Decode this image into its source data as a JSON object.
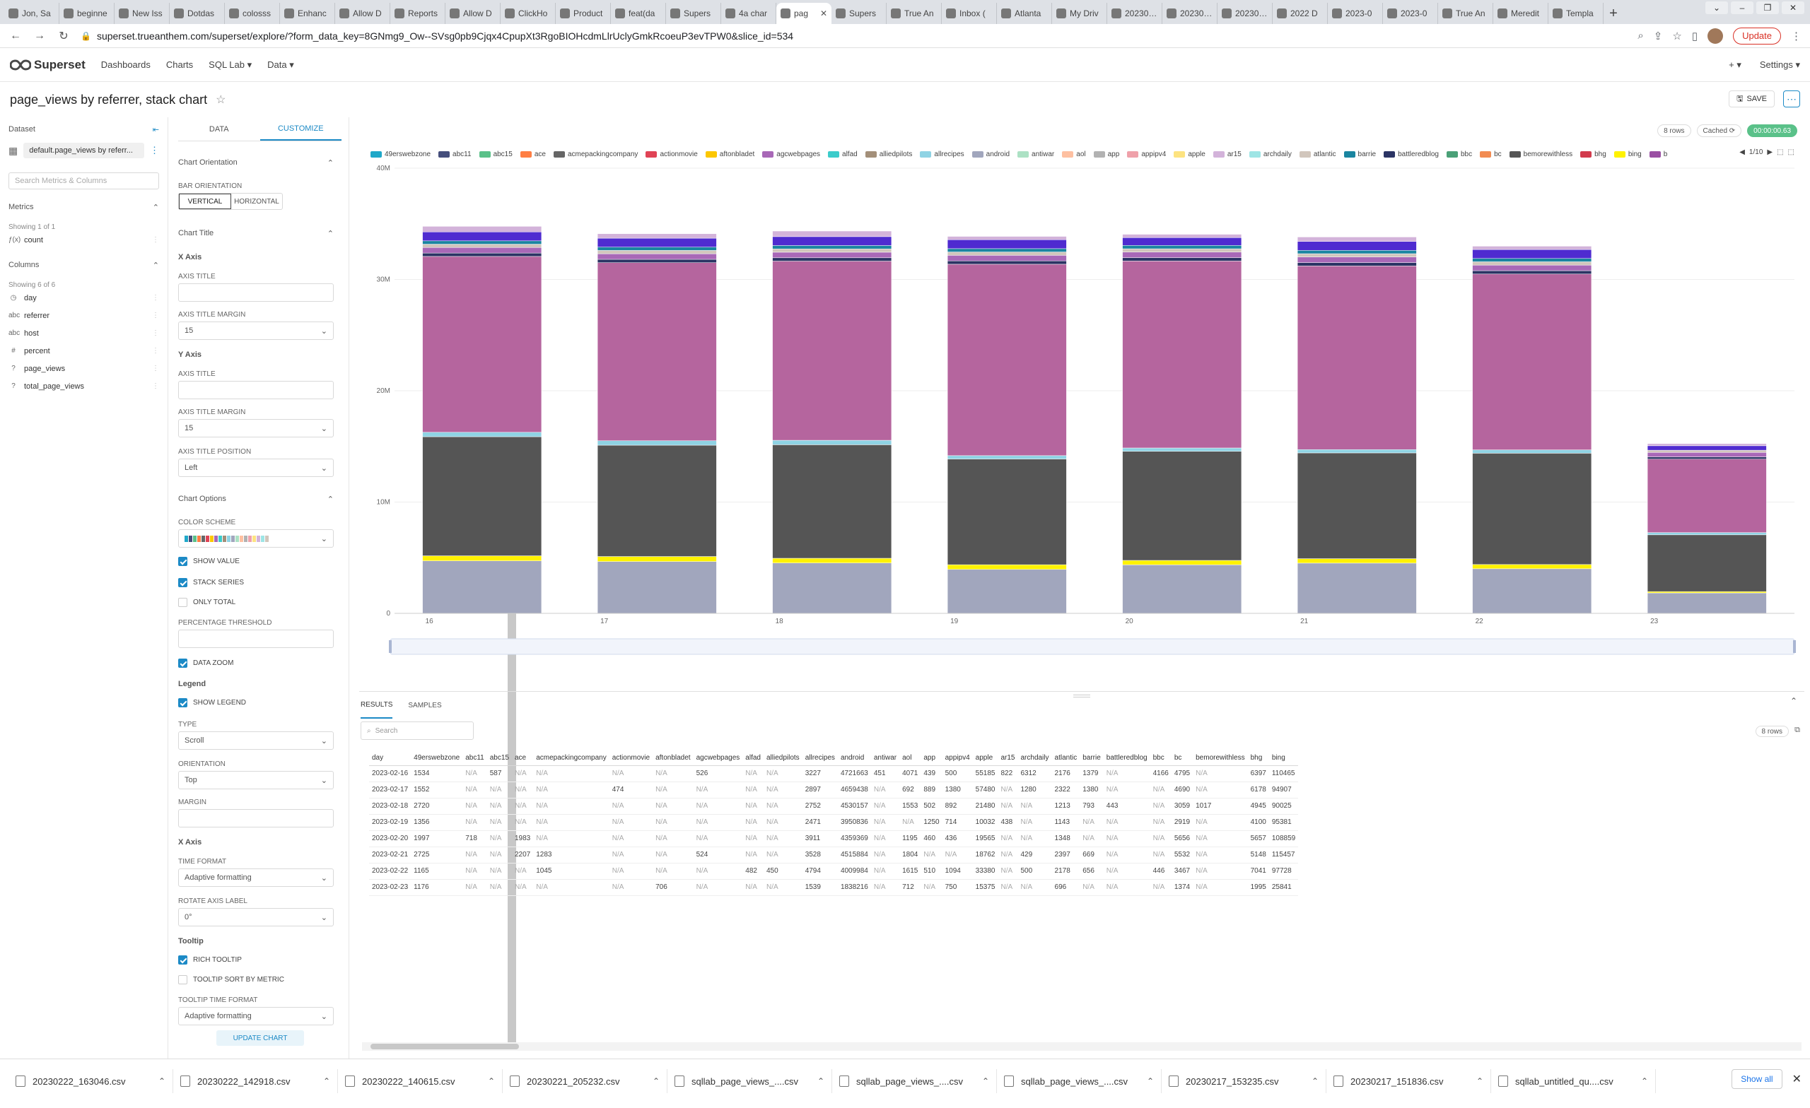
{
  "browser": {
    "tabs": [
      "Jon, Sa",
      "beginne",
      "New Iss",
      "Dotdas",
      "colosss",
      "Enhanc",
      "Allow D",
      "Reports",
      "Allow D",
      "ClickHo",
      "Product",
      "feat(da",
      "Supers",
      "4a char",
      "pag",
      "Supers",
      "True An",
      "Inbox (",
      "Atlanta",
      "My Driv",
      "20230…",
      "20230…",
      "20230…",
      "2022 D",
      "2023-0",
      "2023-0",
      "True An",
      "Meredit",
      "Templa"
    ],
    "active_tab": 14,
    "url": "superset.trueanthem.com/superset/explore/?form_data_key=8GNmg9_Ow--SVsg0pb9Cjqx4CpupXt3RgoBIOHcdmLlrUclyGmkRcoeuP3evTPW0&slice_id=534",
    "update_label": "Update"
  },
  "appnav": {
    "brand": "Superset",
    "links": [
      "Dashboards",
      "Charts",
      "SQL Lab ▾",
      "Data ▾"
    ],
    "right": [
      "+ ▾",
      "Settings ▾"
    ]
  },
  "header": {
    "title": "page_views by referrer, stack chart",
    "save_label": "SAVE"
  },
  "dataset": {
    "label": "Dataset",
    "name": "default.page_views by referr...",
    "search_placeholder": "Search Metrics & Columns",
    "metrics_label": "Metrics",
    "metrics_showing": "Showing 1 of 1",
    "metrics": [
      {
        "type": "ƒ(x)",
        "name": "count"
      }
    ],
    "columns_label": "Columns",
    "columns_showing": "Showing 6 of 6",
    "columns": [
      {
        "type": "◷",
        "name": "day"
      },
      {
        "type": "abc",
        "name": "referrer"
      },
      {
        "type": "abc",
        "name": "host"
      },
      {
        "type": "#",
        "name": "percent"
      },
      {
        "type": "?",
        "name": "page_views"
      },
      {
        "type": "?",
        "name": "total_page_views"
      }
    ]
  },
  "controls": {
    "tabs": [
      "DATA",
      "CUSTOMIZE"
    ],
    "chart_orientation": "Chart Orientation",
    "bar_orientation_label": "BAR ORIENTATION",
    "bar_orientation_options": [
      "VERTICAL",
      "HORIZONTAL"
    ],
    "chart_title": "Chart Title",
    "x_axis": "X Axis",
    "axis_title": "AXIS TITLE",
    "axis_title_margin": "AXIS TITLE MARGIN",
    "x_margin_value": "15",
    "y_axis": "Y Axis",
    "y_margin_value": "15",
    "axis_title_position": "AXIS TITLE POSITION",
    "axis_title_position_value": "Left",
    "chart_options": "Chart Options",
    "color_scheme": "COLOR SCHEME",
    "show_value": "SHOW VALUE",
    "stack_series": "STACK SERIES",
    "only_total": "ONLY TOTAL",
    "percentage_threshold": "PERCENTAGE THRESHOLD",
    "data_zoom": "DATA ZOOM",
    "legend": "Legend",
    "show_legend": "SHOW LEGEND",
    "type_label": "TYPE",
    "type_value": "Scroll",
    "orientation_label": "ORIENTATION",
    "orientation_value": "Top",
    "margin_label": "MARGIN",
    "x_axis2": "X Axis",
    "time_format": "TIME FORMAT",
    "time_format_value": "Adaptive formatting",
    "rotate_axis_label": "ROTATE AXIS LABEL",
    "rotate_value": "0°",
    "tooltip": "Tooltip",
    "rich_tooltip": "RICH TOOLTIP",
    "tooltip_sort": "TOOLTIP SORT BY METRIC",
    "tooltip_time_format": "TOOLTIP TIME FORMAT",
    "tooltip_time_format_value": "Adaptive formatting",
    "update_chart": "UPDATE CHART"
  },
  "chart_status": {
    "rows": "8 rows",
    "cached": "Cached ⟳",
    "time": "00:00:00.63"
  },
  "legend_items": [
    {
      "name": "49erswebzone",
      "color": "#1FA8C9"
    },
    {
      "name": "abc11",
      "color": "#454E7C"
    },
    {
      "name": "abc15",
      "color": "#5AC189"
    },
    {
      "name": "ace",
      "color": "#FF7F44"
    },
    {
      "name": "acmepackingcompany",
      "color": "#666666"
    },
    {
      "name": "actionmovie",
      "color": "#E04355"
    },
    {
      "name": "aftonbladet",
      "color": "#FCC700"
    },
    {
      "name": "agcwebpages",
      "color": "#A868B7"
    },
    {
      "name": "alfad",
      "color": "#3CCCCB"
    },
    {
      "name": "alliedpilots",
      "color": "#A38F79"
    },
    {
      "name": "allrecipes",
      "color": "#8FD3E4"
    },
    {
      "name": "android",
      "color": "#A1A6BD"
    },
    {
      "name": "antiwar",
      "color": "#ACE1C4"
    },
    {
      "name": "aol",
      "color": "#FEC0A1"
    },
    {
      "name": "app",
      "color": "#B2B2B2"
    },
    {
      "name": "appipv4",
      "color": "#EFA1AA"
    },
    {
      "name": "apple",
      "color": "#FDE380"
    },
    {
      "name": "ar15",
      "color": "#D3B3DA"
    },
    {
      "name": "archdaily",
      "color": "#9EE5E5"
    },
    {
      "name": "atlantic",
      "color": "#D1C6BC"
    },
    {
      "name": "barrie",
      "color": "#1A85A0"
    },
    {
      "name": "battleredblog",
      "color": "#2B3464"
    },
    {
      "name": "bbc",
      "color": "#4AA077"
    },
    {
      "name": "bc",
      "color": "#F28B51"
    },
    {
      "name": "bemorewithless",
      "color": "#555555"
    },
    {
      "name": "bhg",
      "color": "#D23B4D"
    },
    {
      "name": "bing",
      "color": "#FFF200"
    },
    {
      "name": "b",
      "color": "#9A4FA3"
    }
  ],
  "legend_pager": "1/10",
  "chart_data": {
    "type": "bar",
    "stacked": true,
    "categories": [
      "16",
      "17",
      "18",
      "19",
      "20",
      "21",
      "22",
      "23"
    ],
    "y_ticks": [
      "0",
      "10M",
      "20M",
      "30M",
      "40M"
    ],
    "ylim": [
      0,
      40000000
    ],
    "series": [
      {
        "name": "android",
        "color": "#A1A6BD",
        "values": [
          4721663,
          4659438,
          4530157,
          3950836,
          4359369,
          4515884,
          4009984,
          1838216
        ]
      },
      {
        "name": "bing",
        "color": "#FFF200",
        "values": [
          450000,
          450000,
          420000,
          420000,
          400000,
          400000,
          380000,
          120000
        ]
      },
      {
        "name": "bemorewithless",
        "color": "#555555",
        "values": [
          10700000,
          10000000,
          10200000,
          9500000,
          9800000,
          9500000,
          10000000,
          5100000
        ]
      },
      {
        "name": "allrecipes",
        "color": "#8FD3E4",
        "values": [
          400000,
          400000,
          400000,
          300000,
          300000,
          300000,
          300000,
          200000
        ]
      },
      {
        "name": "b",
        "color": "#B5659E",
        "values": [
          15800000,
          16000000,
          16100000,
          17200000,
          16800000,
          16500000,
          15800000,
          6600000
        ]
      },
      {
        "name": "battleredblog",
        "color": "#2B3464",
        "values": [
          300000,
          300000,
          300000,
          300000,
          300000,
          300000,
          300000,
          200000
        ]
      },
      {
        "name": "agcwebpages",
        "color": "#A868B7",
        "values": [
          500000,
          500000,
          500000,
          500000,
          500000,
          500000,
          500000,
          400000
        ]
      },
      {
        "name": "atlantic",
        "color": "#D1C6BC",
        "values": [
          300000,
          300000,
          300000,
          300000,
          300000,
          300000,
          300000,
          200000
        ]
      },
      {
        "name": "barrie",
        "color": "#1A85A0",
        "values": [
          300000,
          300000,
          300000,
          300000,
          300000,
          300000,
          300000,
          0
        ]
      },
      {
        "name": "battleredblog",
        "color": "#4F2BD0",
        "values": [
          800000,
          800000,
          800000,
          800000,
          700000,
          800000,
          800000,
          400000
        ]
      },
      {
        "name": "ar15",
        "color": "#D3B3DA",
        "values": [
          500000,
          400000,
          500000,
          300000,
          300000,
          400000,
          300000,
          200000
        ]
      }
    ]
  },
  "results": {
    "tabs": [
      "RESULTS",
      "SAMPLES"
    ],
    "search_placeholder": "Search",
    "rows_badge": "8 rows",
    "columns": [
      "day",
      "49erswebzone",
      "abc11",
      "abc15",
      "ace",
      "acmepackingcompany",
      "actionmovie",
      "aftonbladet",
      "agcwebpages",
      "alfad",
      "alliedpilots",
      "allrecipes",
      "android",
      "antiwar",
      "aol",
      "app",
      "appipv4",
      "apple",
      "ar15",
      "archdaily",
      "atlantic",
      "barrie",
      "battleredblog",
      "bbc",
      "bc",
      "bemorewithless",
      "bhg",
      "bing"
    ],
    "rows": [
      [
        "2023-02-16",
        "1534",
        "N/A",
        "587",
        "N/A",
        "N/A",
        "N/A",
        "N/A",
        "526",
        "N/A",
        "N/A",
        "3227",
        "4721663",
        "451",
        "4071",
        "439",
        "500",
        "55185",
        "822",
        "6312",
        "2176",
        "1379",
        "N/A",
        "4166",
        "4795",
        "N/A",
        "6397",
        "110465"
      ],
      [
        "2023-02-17",
        "1552",
        "N/A",
        "N/A",
        "N/A",
        "N/A",
        "474",
        "N/A",
        "N/A",
        "N/A",
        "N/A",
        "2897",
        "4659438",
        "N/A",
        "692",
        "889",
        "1380",
        "57480",
        "N/A",
        "1280",
        "2322",
        "1380",
        "N/A",
        "N/A",
        "4690",
        "N/A",
        "6178",
        "94907"
      ],
      [
        "2023-02-18",
        "2720",
        "N/A",
        "N/A",
        "N/A",
        "N/A",
        "N/A",
        "N/A",
        "N/A",
        "N/A",
        "N/A",
        "2752",
        "4530157",
        "N/A",
        "1553",
        "502",
        "892",
        "21480",
        "N/A",
        "N/A",
        "1213",
        "793",
        "443",
        "N/A",
        "3059",
        "1017",
        "4945",
        "90025"
      ],
      [
        "2023-02-19",
        "1356",
        "N/A",
        "N/A",
        "N/A",
        "N/A",
        "N/A",
        "N/A",
        "N/A",
        "N/A",
        "N/A",
        "2471",
        "3950836",
        "N/A",
        "N/A",
        "1250",
        "714",
        "10032",
        "438",
        "N/A",
        "1143",
        "N/A",
        "N/A",
        "N/A",
        "2919",
        "N/A",
        "4100",
        "95381"
      ],
      [
        "2023-02-20",
        "1997",
        "718",
        "N/A",
        "1983",
        "N/A",
        "N/A",
        "N/A",
        "N/A",
        "N/A",
        "N/A",
        "3911",
        "4359369",
        "N/A",
        "1195",
        "460",
        "436",
        "19565",
        "N/A",
        "N/A",
        "1348",
        "N/A",
        "N/A",
        "N/A",
        "5656",
        "N/A",
        "5657",
        "108859"
      ],
      [
        "2023-02-21",
        "2725",
        "N/A",
        "N/A",
        "2207",
        "1283",
        "N/A",
        "N/A",
        "524",
        "N/A",
        "N/A",
        "3528",
        "4515884",
        "N/A",
        "1804",
        "N/A",
        "N/A",
        "18762",
        "N/A",
        "429",
        "2397",
        "669",
        "N/A",
        "N/A",
        "5532",
        "N/A",
        "5148",
        "115457"
      ],
      [
        "2023-02-22",
        "1165",
        "N/A",
        "N/A",
        "N/A",
        "1045",
        "N/A",
        "N/A",
        "N/A",
        "482",
        "450",
        "4794",
        "4009984",
        "N/A",
        "1615",
        "510",
        "1094",
        "33380",
        "N/A",
        "500",
        "2178",
        "656",
        "N/A",
        "446",
        "3467",
        "N/A",
        "7041",
        "97728"
      ],
      [
        "2023-02-23",
        "1176",
        "N/A",
        "N/A",
        "N/A",
        "N/A",
        "N/A",
        "706",
        "N/A",
        "N/A",
        "N/A",
        "1539",
        "1838216",
        "N/A",
        "712",
        "N/A",
        "750",
        "15375",
        "N/A",
        "N/A",
        "696",
        "N/A",
        "N/A",
        "N/A",
        "1374",
        "N/A",
        "1995",
        "25841"
      ]
    ]
  },
  "downloads": {
    "files": [
      "20230222_163046.csv",
      "20230222_142918.csv",
      "20230222_140615.csv",
      "20230221_205232.csv",
      "sqllab_page_views_....csv",
      "sqllab_page_views_....csv",
      "sqllab_page_views_....csv",
      "20230217_153235.csv",
      "20230217_151836.csv",
      "sqllab_untitled_qu....csv"
    ],
    "show_all": "Show all"
  }
}
